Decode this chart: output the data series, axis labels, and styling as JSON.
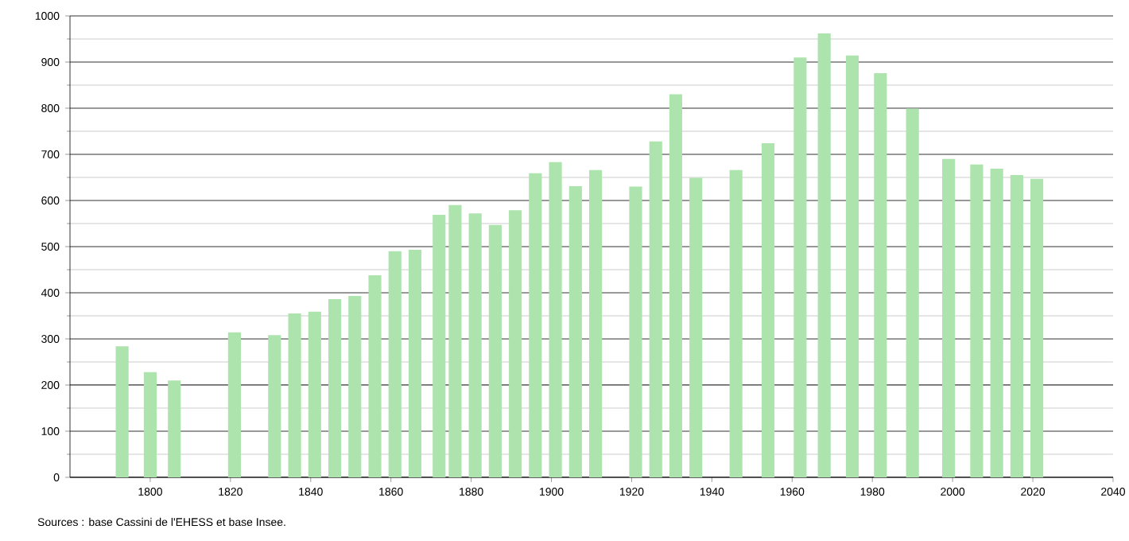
{
  "chart_data": {
    "type": "bar",
    "color": "#ade3ad",
    "x": [
      1793,
      1800,
      1806,
      1821,
      1831,
      1836,
      1841,
      1846,
      1851,
      1856,
      1861,
      1866,
      1872,
      1876,
      1881,
      1886,
      1891,
      1896,
      1901,
      1906,
      1911,
      1921,
      1926,
      1931,
      1936,
      1946,
      1954,
      1962,
      1968,
      1975,
      1982,
      1990,
      1999,
      2006,
      2011,
      2016,
      2021
    ],
    "values": [
      284,
      228,
      210,
      314,
      308,
      355,
      359,
      386,
      393,
      438,
      490,
      493,
      569,
      590,
      572,
      547,
      579,
      659,
      683,
      631,
      666,
      630,
      728,
      830,
      649,
      666,
      724,
      910,
      962,
      914,
      876,
      799,
      690,
      678,
      669,
      655,
      647
    ],
    "xlim": [
      1780,
      2040
    ],
    "ylim": [
      0,
      1000
    ],
    "xticks": [
      1800,
      1820,
      1840,
      1860,
      1880,
      1900,
      1920,
      1940,
      1960,
      1980,
      2000,
      2020,
      2040
    ],
    "yticks": [
      0,
      100,
      200,
      300,
      400,
      500,
      600,
      700,
      800,
      900,
      1000
    ],
    "grid": "y",
    "annotations": [
      "Sources : base Cassini de l'EHESS et base Insee."
    ]
  }
}
